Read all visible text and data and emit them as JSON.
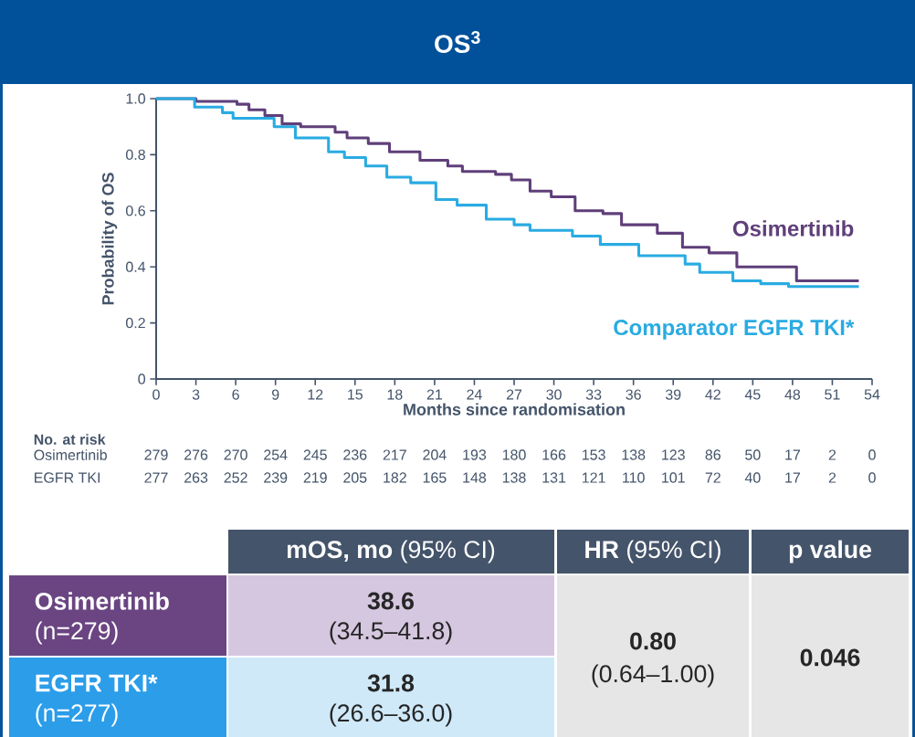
{
  "chart_data": {
    "type": "step",
    "title": "OS$^{3}$",
    "xlabel": "Months since randomisation",
    "ylabel": "Probability of OS",
    "xlim": [
      0,
      54
    ],
    "ylim": [
      0,
      1
    ],
    "xticks": [
      0,
      3,
      6,
      9,
      12,
      15,
      18,
      21,
      24,
      27,
      30,
      33,
      36,
      39,
      42,
      45,
      48,
      51,
      54
    ],
    "yticks": [
      {
        "value": 0,
        "label": "0"
      },
      0.2,
      0.4,
      0.6,
      0.8,
      {
        "value": 1,
        "label": "1.0"
      }
    ],
    "legend": false,
    "grid": false,
    "series": [
      {
        "name": "Osimertinib",
        "color": "#5f3f7a",
        "x": [
          0,
          3,
          6.1,
          7,
          8.2,
          9.5,
          10.9,
          13.5,
          14.4,
          16,
          17.6,
          19.9,
          22,
          23.1,
          25.6,
          26.8,
          28.2,
          29.8,
          31.6,
          33.7,
          35.1,
          37.8,
          39.7,
          41.7,
          43.8,
          47.5,
          48.3,
          53
        ],
        "values": [
          1.0,
          0.99,
          0.98,
          0.96,
          0.94,
          0.91,
          0.9,
          0.88,
          0.86,
          0.84,
          0.81,
          0.78,
          0.76,
          0.74,
          0.73,
          0.71,
          0.67,
          0.65,
          0.6,
          0.59,
          0.55,
          0.52,
          0.47,
          0.45,
          0.4,
          0.4,
          0.35,
          0.35
        ]
      },
      {
        "name": "Comparator EGFR TKI*",
        "color": "#29abe2",
        "x": [
          0,
          2.9,
          5,
          5.8,
          8.9,
          10.5,
          13,
          14.2,
          15.8,
          17.4,
          19.2,
          21.1,
          22.7,
          24.9,
          27,
          28.2,
          31.4,
          33.5,
          36.4,
          39.9,
          41,
          43.5,
          45.6,
          47.7,
          53
        ],
        "values": [
          1.0,
          0.97,
          0.95,
          0.93,
          0.9,
          0.86,
          0.81,
          0.79,
          0.76,
          0.72,
          0.7,
          0.64,
          0.62,
          0.57,
          0.55,
          0.53,
          0.51,
          0.48,
          0.44,
          0.41,
          0.38,
          0.35,
          0.34,
          0.33,
          0.33
        ]
      }
    ],
    "annotations": [
      "No. at risk",
      "Osimertinib",
      "279",
      "276",
      "270",
      "254",
      "245",
      "236",
      "217",
      "204",
      "193",
      "180",
      "166",
      "153",
      "138",
      "123",
      "86",
      "50",
      "17",
      "2",
      "0",
      "EGFR TKI",
      "277",
      "263",
      "252",
      "239",
      "219",
      "205",
      "182",
      "165",
      "148",
      "138",
      "131",
      "121",
      "110",
      "101",
      "72",
      "40",
      "17",
      "2",
      "0",
      "**mOS, mo** (95% CI)",
      "**HR** (95% CI)",
      "p value",
      "Osimertinib",
      "(n=279)",
      "38.6",
      "(34.5–41.8)",
      "0.80",
      "(0.64–1.00)",
      "0.046",
      "EGFR TKI*",
      "(n=277)",
      "31.8",
      "(26.6–36.0)"
    ]
  }
}
